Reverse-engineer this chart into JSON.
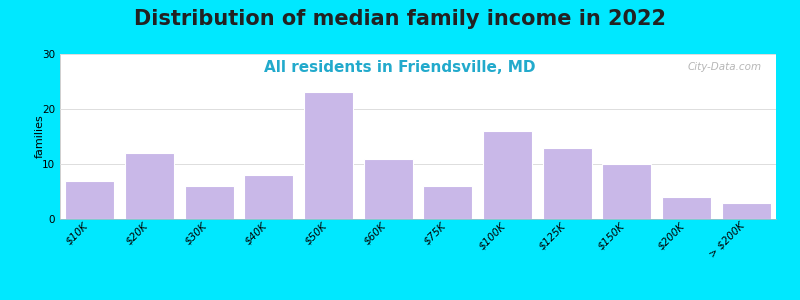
{
  "title": "Distribution of median family income in 2022",
  "subtitle": "All residents in Friendsville, MD",
  "categories": [
    "$10K",
    "$20K",
    "$30K",
    "$40K",
    "$50K",
    "$60K",
    "$75K",
    "$100K",
    "$125K",
    "$150K",
    "$200K",
    "> $200K"
  ],
  "values": [
    7,
    12,
    6,
    8,
    23,
    11,
    6,
    16,
    13,
    10,
    4,
    3
  ],
  "bar_color": "#c9b8e8",
  "bar_edgecolor": "#ffffff",
  "ylabel": "families",
  "ylim": [
    0,
    30
  ],
  "yticks": [
    0,
    10,
    20,
    30
  ],
  "background_outer": "#00e8ff",
  "bg_color_topleft": "#c8ecd8",
  "bg_color_bottomright": "#f8f8f8",
  "title_fontsize": 15,
  "subtitle_fontsize": 11,
  "subtitle_color": "#22aacc",
  "watermark": "City-Data.com",
  "grid_color": "#dddddd",
  "tick_label_fontsize": 7.5,
  "ylabel_fontsize": 8
}
